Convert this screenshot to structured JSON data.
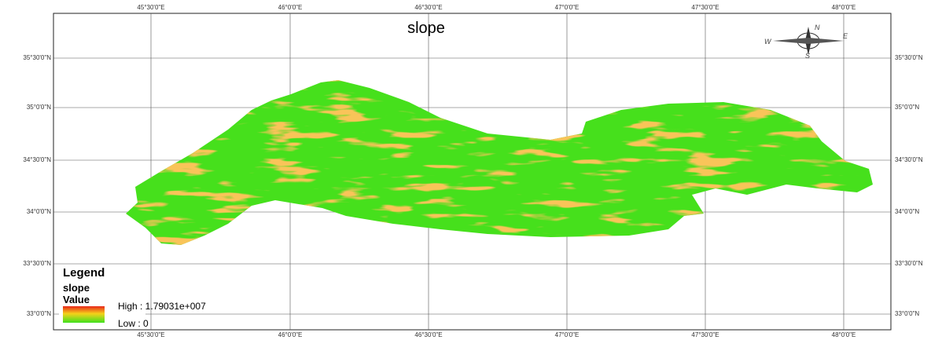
{
  "title": "slope",
  "graticule": {
    "longitudes": [
      "45°30'0\"E",
      "46°0'0\"E",
      "46°30'0\"E",
      "47°0'0\"E",
      "47°30'0\"E",
      "48°0'0\"E"
    ],
    "latitudes": [
      "35°30'0\"N",
      "35°0'0\"N",
      "34°30'0\"N",
      "34°0'0\"N",
      "33°30'0\"N",
      "33°0'0\"N"
    ]
  },
  "compass": {
    "labels": [
      "N",
      "E",
      "S",
      "W"
    ]
  },
  "legend": {
    "heading": "Legend",
    "layer": "slope",
    "field": "Value",
    "high": "High : 1.79031e+007",
    "low": "Low : 0"
  }
}
